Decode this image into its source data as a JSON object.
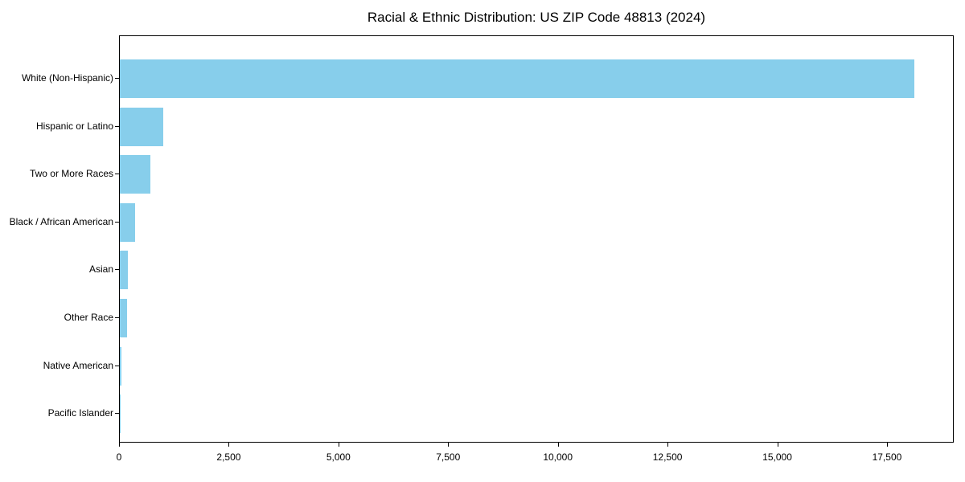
{
  "chart_data": {
    "type": "bar",
    "orientation": "horizontal",
    "title": "Racial & Ethnic Distribution: US ZIP Code 48813 (2024)",
    "categories": [
      "White (Non-Hispanic)",
      "Hispanic or Latino",
      "Two or More Races",
      "Black / African American",
      "Asian",
      "Other Race",
      "Native American",
      "Pacific Islander"
    ],
    "values": [
      18100,
      990,
      700,
      350,
      185,
      160,
      40,
      5
    ],
    "title_text": "Racial & Ethnic Distribution: US ZIP Code 48813 (2024)",
    "xlabel": "",
    "ylabel": "",
    "xlim": [
      0,
      19022
    ],
    "xticks": [
      0,
      2500,
      5000,
      7500,
      10000,
      12500,
      15000,
      17500
    ],
    "xtick_labels": [
      "0",
      "2,500",
      "5,000",
      "7,500",
      "10,000",
      "12,500",
      "15,000",
      "17,500"
    ],
    "bar_color": "#87CEEB",
    "grid": false,
    "legend": null
  }
}
